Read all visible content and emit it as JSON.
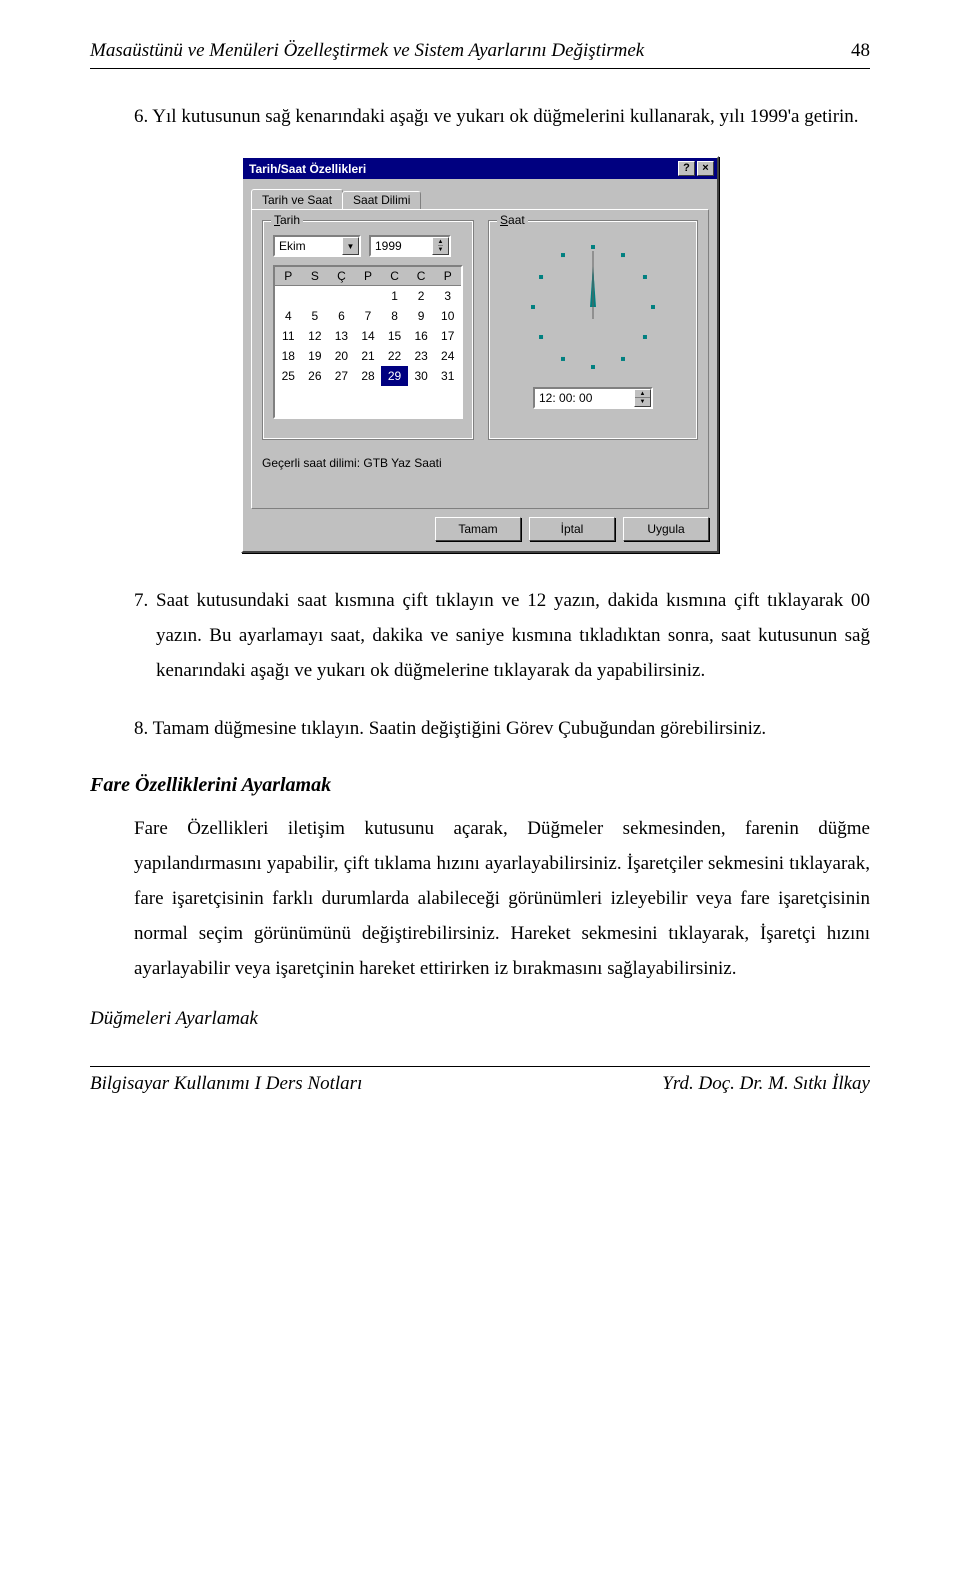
{
  "header": {
    "title": "Masaüstünü ve Menüleri Özelleştirmek ve Sistem Ayarlarını Değiştirmek",
    "page": "48"
  },
  "steps": {
    "s6": "6.  Yıl kutusunun sağ kenarındaki aşağı ve yukarı ok düğmelerini kullanarak, yılı 1999'a getirin.",
    "s7": "7.  Saat kutusundaki saat kısmına çift tıklayın ve 12 yazın, dakida kısmına çift tıklayarak 00 yazın. Bu ayarlamayı saat, dakika ve saniye kısmına tıkladıktan sonra, saat kutusunun sağ kenarındaki aşağı ve yukarı ok düğmelerine tıklayarak da yapabilirsiniz.",
    "s8": "8.  Tamam düğmesine tıklayın. Saatin değiştiğini Görev Çubuğundan görebilirsiniz."
  },
  "dialog": {
    "title": "Tarih/Saat Özellikleri",
    "help_btn": "?",
    "close_btn": "×",
    "tabs": {
      "active": "Tarih ve Saat",
      "inactive": "Saat Dilimi"
    },
    "date_group": {
      "label_prefix": "T",
      "label_rest": "arih",
      "month": "Ekim",
      "year": "1999",
      "weekdays": [
        "P",
        "S",
        "Ç",
        "P",
        "C",
        "C",
        "P"
      ],
      "cells": [
        "",
        "",
        "",
        "",
        "1",
        "2",
        "3",
        "4",
        "5",
        "6",
        "7",
        "8",
        "9",
        "10",
        "11",
        "12",
        "13",
        "14",
        "15",
        "16",
        "17",
        "18",
        "19",
        "20",
        "21",
        "22",
        "23",
        "24",
        "25",
        "26",
        "27",
        "28",
        "29",
        "30",
        "31"
      ],
      "selected": "29"
    },
    "time_group": {
      "label_prefix": "S",
      "label_rest": "aat",
      "time": "12: 00: 00",
      "dot_color": "#008080",
      "hand_color": "#008080"
    },
    "tz_label": "Geçerli saat dilimi:  GTB Yaz Saati",
    "buttons": {
      "ok": "Tamam",
      "cancel": "İptal",
      "apply": "Uygula"
    }
  },
  "sections": {
    "h1": "Fare Özelliklerini Ayarlamak",
    "p1": "Fare Özellikleri iletişim kutusunu açarak, Düğmeler sekmesinden, farenin düğme yapılandırmasını yapabilir, çift tıklama hızını ayarlayabilirsiniz. İşaretçiler sekmesini tıklayarak, fare işaretçisinin farklı durumlarda alabileceği görünümleri izleyebilir veya fare işaretçisinin normal seçim görünümünü değiştirebilirsiniz. Hareket sekmesini tıklayarak, İşaretçi hızını ayarlayabilir veya işaretçinin hareket ettirirken iz bırakmasını sağlayabilirsiniz.",
    "h2": "Düğmeleri Ayarlamak"
  },
  "footer": {
    "left": "Bilgisayar Kullanımı I Ders Notları",
    "right": "Yrd. Doç. Dr. M. Sıtkı İlkay"
  }
}
